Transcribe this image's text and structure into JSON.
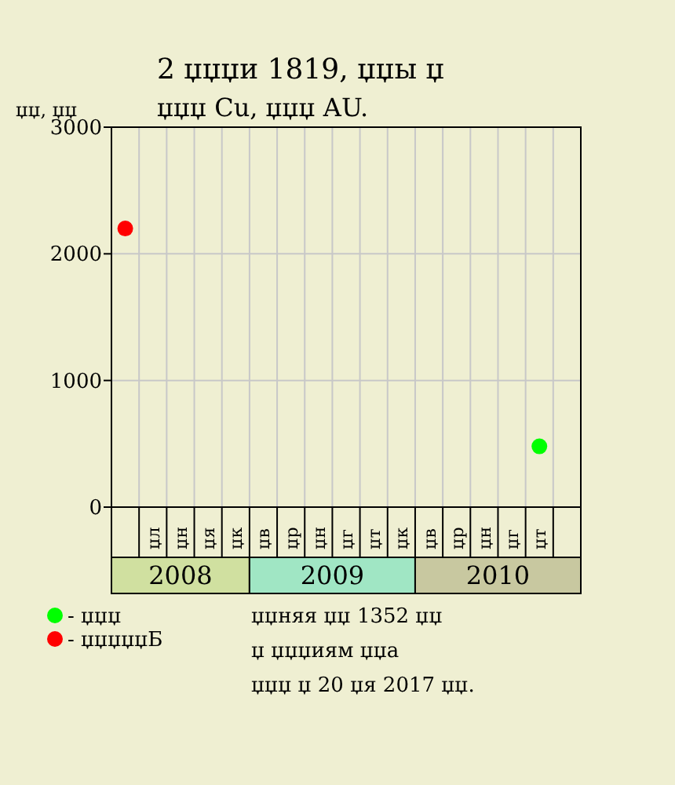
{
  "chart_data": {
    "type": "scatter",
    "title": "2 џџџи 1819, џџы џ",
    "subtitle": "џџџ Cu, џџџ AU.",
    "ylabel": "џџ, џџ",
    "categories": [
      null,
      "џл",
      "џн",
      "џя",
      "џк",
      "џв",
      "џр",
      "џн",
      "џг",
      "џт",
      "џк",
      "џв",
      "џр",
      "џн",
      "џг",
      "џт",
      null
    ],
    "series": [
      {
        "name": "- џџџ",
        "color": "#00ff00",
        "values": [
          null,
          null,
          null,
          null,
          null,
          null,
          null,
          null,
          null,
          null,
          null,
          null,
          null,
          null,
          null,
          480,
          null
        ]
      },
      {
        "name": "- џџџџџБ",
        "color": "#ff0000",
        "values": [
          2200,
          null,
          null,
          null,
          null,
          null,
          null,
          null,
          null,
          null,
          null,
          null,
          null,
          null,
          null,
          null,
          null
        ]
      }
    ],
    "ylim": [
      0,
      3000
    ],
    "yticks": [
      0,
      1000,
      2000,
      3000
    ],
    "grid": true,
    "legend": "bottom left",
    "marker": "circle",
    "annotations": [
      "2008",
      "2009",
      "2010",
      "џџняя џџ 1352 џџ",
      "џ џџџиям џџа",
      "џџџ џ 20 џя 2017 џџ."
    ]
  }
}
